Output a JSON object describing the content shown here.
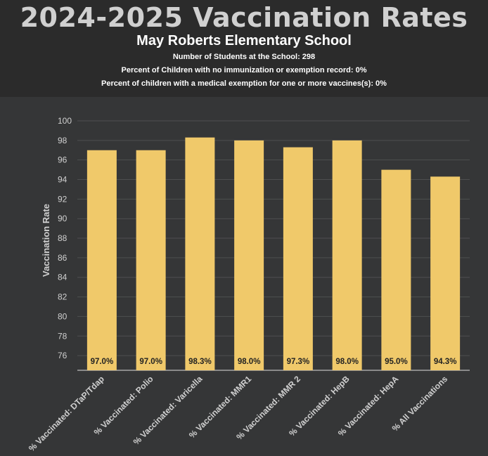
{
  "header": {
    "title": "2024-2025 Vaccination Rates",
    "subtitle": "May Roberts Elementary School",
    "info": [
      "Number of Students at the School: 298",
      "Percent of Children with no immunization or exemption record: 0%",
      "Percent of children with a medical exemption for one or more vaccines(s): 0%"
    ]
  },
  "colors": {
    "bar": "#f0c96a",
    "background": "#353637",
    "header_background": "#2b2b2b",
    "gridline": "#4e4f50",
    "text": "#d0d0d0",
    "value_label": "#222222"
  },
  "chart_data": {
    "type": "bar",
    "categories": [
      "% Vaccinated: DTaP/Tdap",
      "% Vaccinated: Polio",
      "% Vaccinated: Varicella",
      "% Vaccinated: MMR1",
      "% Vaccinated: MMR 2",
      "% Vaccinated: HepB",
      "% Vaccinated: HepA",
      "% All Vaccinations"
    ],
    "values": [
      97.0,
      97.0,
      98.3,
      98.0,
      97.3,
      98.0,
      95.0,
      94.3
    ],
    "value_labels": [
      "97.0%",
      "97.0%",
      "98.3%",
      "98.0%",
      "97.3%",
      "98.0%",
      "95.0%",
      "94.3%"
    ],
    "ylabel": "Vaccination Rate",
    "xlabel": "",
    "ylim": [
      74.5,
      100
    ],
    "yticks": [
      76,
      78,
      80,
      82,
      84,
      86,
      88,
      90,
      92,
      94,
      96,
      98,
      100
    ],
    "grid": true,
    "legend": "none"
  }
}
